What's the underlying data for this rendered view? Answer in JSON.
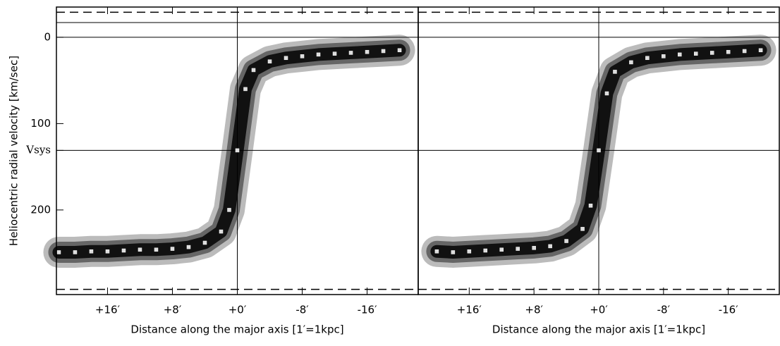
{
  "chart_data": [
    {
      "type": "position-velocity",
      "xlabel": "Distance along the major axis [1′=1kpc]",
      "ylabel": "Heliocentric radial velocity [km/sec]",
      "xlim": [
        22.3,
        -22.3
      ],
      "ylim": [
        -35,
        298
      ],
      "xticks": [
        {
          "value": 16,
          "label": "+16′"
        },
        {
          "value": 8,
          "label": "+8′"
        },
        {
          "value": 0,
          "label": "+0′"
        },
        {
          "value": -8,
          "label": "-8′"
        },
        {
          "value": -16,
          "label": "-16′"
        }
      ],
      "yticks": [
        0,
        100,
        200,
        {
          "value": 131,
          "label": "Vsys"
        }
      ],
      "reference_lines": [
        -17,
        0,
        131
      ],
      "dashed_lines": [
        -29,
        292
      ],
      "x_reference_lines": [
        0
      ],
      "series": [
        {
          "color": "#dddddd",
          "x": [
            22,
            20,
            18,
            16,
            14,
            12,
            10,
            8,
            6,
            4,
            2,
            1,
            0,
            -1,
            -2,
            -4,
            -6,
            -8,
            -10,
            -12,
            -14,
            -16,
            -18,
            -20
          ],
          "values": [
            249,
            249,
            248,
            248,
            247,
            246,
            246,
            245,
            243,
            238,
            225,
            200,
            131,
            60,
            38,
            28,
            24,
            22,
            20,
            19,
            18,
            17,
            16,
            15
          ]
        }
      ]
    },
    {
      "type": "position-velocity",
      "xlabel": "Distance along the major axis [1′=1kpc]",
      "xlim": [
        22.3,
        -22.3
      ],
      "ylim": [
        -35,
        298
      ],
      "xticks": [
        {
          "value": 16,
          "label": "+16′"
        },
        {
          "value": 8,
          "label": "+8′"
        },
        {
          "value": 0,
          "label": "+0′"
        },
        {
          "value": -8,
          "label": "-8′"
        },
        {
          "value": -16,
          "label": "-16′"
        }
      ],
      "reference_lines": [
        -17,
        0,
        131
      ],
      "dashed_lines": [
        -29,
        292
      ],
      "x_reference_lines": [
        0
      ],
      "series": [
        {
          "color": "#dddddd",
          "x": [
            20,
            18,
            16,
            14,
            12,
            10,
            8,
            6,
            4,
            2,
            1,
            0,
            -1,
            -2,
            -4,
            -6,
            -8,
            -10,
            -12,
            -14,
            -16,
            -18,
            -20
          ],
          "values": [
            248,
            249,
            248,
            247,
            246,
            245,
            244,
            242,
            236,
            222,
            195,
            131,
            65,
            40,
            29,
            24,
            22,
            20,
            19,
            18,
            17,
            16,
            15
          ]
        }
      ]
    }
  ]
}
